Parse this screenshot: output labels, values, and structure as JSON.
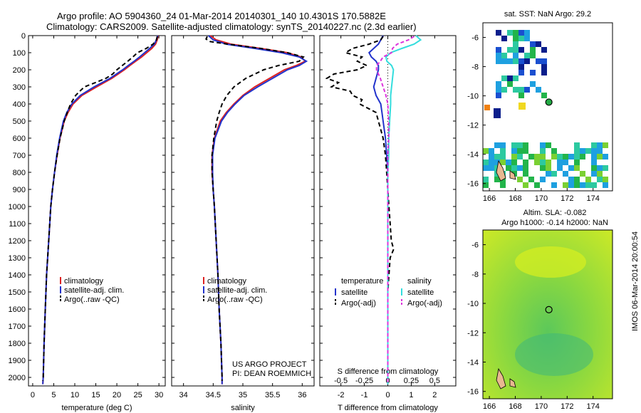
{
  "header": {
    "line1": "Argo profile: AO 5904360_24 01-Mar-2014 20140301_140 10.4301S 170.5882E",
    "line2": "Climatology: CARS2009. Satellite-adjusted climatology: synTS_20140227.nc (2.3d earlier)"
  },
  "colors": {
    "clim": "#dd2222",
    "sat": "#2233cc",
    "argo": "#000000",
    "sal_sat": "#33dddd",
    "sal_argo": "#dd33dd"
  },
  "depth_axis": {
    "ticks": [
      0,
      100,
      200,
      300,
      400,
      500,
      600,
      700,
      800,
      900,
      1000,
      1100,
      1200,
      1300,
      1400,
      1500,
      1600,
      1700,
      1800,
      1900,
      2000
    ],
    "lim": [
      0,
      2050
    ]
  },
  "chart_data": [
    {
      "type": "line",
      "xlabel": "temperature (deg C)",
      "xticks": [
        0,
        5,
        10,
        15,
        20,
        25,
        30
      ],
      "xlim": [
        -1,
        31.5
      ],
      "legend": {
        "position": "lower-center",
        "entries": [
          "climatology",
          "satellite-adj. clim.",
          "Argo(..raw -QC)"
        ]
      },
      "series": [
        {
          "name": "climatology",
          "color": "#dd2222",
          "dash": "",
          "depth": [
            0,
            25,
            50,
            75,
            100,
            125,
            150,
            175,
            200,
            250,
            300,
            350,
            400,
            450,
            500,
            600,
            700,
            800,
            900,
            1000,
            1200,
            1400,
            1600,
            1800,
            2000,
            2040
          ],
          "values": [
            29.8,
            29.6,
            29.2,
            28.3,
            27.1,
            25.9,
            24.5,
            23.1,
            21.8,
            18.8,
            15.2,
            11.7,
            9.6,
            8.4,
            7.5,
            6.5,
            5.8,
            5.2,
            4.7,
            4.3,
            3.8,
            3.3,
            3.0,
            2.7,
            2.5,
            2.4
          ]
        },
        {
          "name": "satellite-adj. clim.",
          "color": "#2233cc",
          "dash": "",
          "depth": [
            0,
            25,
            50,
            75,
            100,
            125,
            150,
            175,
            200,
            250,
            300,
            350,
            400,
            450,
            500,
            600,
            700,
            800,
            900,
            1000,
            1200,
            1400,
            1600,
            1800,
            2000,
            2040
          ],
          "values": [
            29.7,
            29.4,
            28.9,
            27.8,
            26.6,
            25.4,
            24.1,
            22.7,
            21.4,
            18.4,
            14.6,
            11.3,
            9.3,
            8.1,
            7.3,
            6.4,
            5.7,
            5.2,
            4.7,
            4.3,
            3.8,
            3.3,
            3.0,
            2.7,
            2.5,
            2.4
          ]
        },
        {
          "name": "Argo(..raw -QC)",
          "color": "#000000",
          "dash": "6,4",
          "depth": [
            5,
            25,
            50,
            75,
            100,
            125,
            150,
            175,
            200,
            225,
            250,
            275,
            300,
            325,
            350,
            400,
            450,
            500,
            600,
            700,
            800,
            900,
            1000,
            1200,
            1400,
            1600,
            1800,
            2000,
            2020
          ],
          "values": [
            29.6,
            29.4,
            28.6,
            27.0,
            24.9,
            23.8,
            22.6,
            21.3,
            20.0,
            19.0,
            17.4,
            14.9,
            12.3,
            11.2,
            10.2,
            9.0,
            8.2,
            7.5,
            6.5,
            5.8,
            5.2,
            4.7,
            4.3,
            3.8,
            3.3,
            3.0,
            2.7,
            2.5,
            2.4
          ]
        }
      ]
    },
    {
      "type": "line",
      "xlabel": "salinity",
      "xticks": [
        34,
        34.5,
        35,
        35.5,
        36
      ],
      "xlim": [
        33.8,
        36.2
      ],
      "legend": {
        "position": "lower-center",
        "entries": [
          "climatology",
          "satellite-adj. clim.",
          "Argo(..raw -QC)"
        ]
      },
      "annotation": [
        "US ARGO PROJECT",
        "PI: DEAN ROEMMICH"
      ],
      "series": [
        {
          "name": "climatology",
          "color": "#dd2222",
          "dash": "",
          "depth": [
            0,
            25,
            50,
            75,
            100,
            125,
            150,
            175,
            200,
            250,
            300,
            350,
            400,
            450,
            500,
            600,
            700,
            800,
            900,
            1000,
            1200,
            1400,
            1600,
            1800,
            2000,
            2040
          ],
          "values": [
            34.45,
            34.55,
            34.8,
            35.3,
            35.75,
            35.98,
            36.05,
            35.9,
            35.7,
            35.45,
            35.2,
            35.0,
            34.85,
            34.72,
            34.62,
            34.52,
            34.48,
            34.48,
            34.5,
            34.52,
            34.55,
            34.58,
            34.6,
            34.63,
            34.65,
            34.65
          ]
        },
        {
          "name": "satellite-adj. clim.",
          "color": "#2233cc",
          "dash": "",
          "depth": [
            0,
            25,
            50,
            75,
            100,
            125,
            150,
            175,
            200,
            250,
            300,
            350,
            400,
            450,
            500,
            600,
            700,
            800,
            900,
            1000,
            1200,
            1400,
            1600,
            1800,
            2000,
            2040
          ],
          "values": [
            34.42,
            34.5,
            34.72,
            35.2,
            35.65,
            35.95,
            36.07,
            35.95,
            35.75,
            35.5,
            35.25,
            35.02,
            34.87,
            34.74,
            34.64,
            34.53,
            34.49,
            34.49,
            34.5,
            34.52,
            34.55,
            34.58,
            34.6,
            34.63,
            34.65,
            34.65
          ]
        },
        {
          "name": "Argo(..raw -QC)",
          "color": "#000000",
          "dash": "6,4",
          "depth": [
            5,
            20,
            35,
            50,
            75,
            100,
            125,
            150,
            175,
            200,
            250,
            300,
            350,
            400,
            450,
            500,
            600,
            700,
            800,
            900,
            1000,
            1200,
            1400,
            1600,
            1800,
            2000,
            2020
          ],
          "values": [
            34.4,
            34.38,
            34.45,
            34.75,
            35.3,
            35.75,
            36.02,
            35.95,
            35.6,
            35.35,
            35.05,
            34.85,
            34.73,
            34.65,
            34.6,
            34.56,
            34.51,
            34.48,
            34.48,
            34.5,
            34.52,
            34.55,
            34.58,
            34.6,
            34.63,
            34.65,
            34.65
          ]
        }
      ]
    },
    {
      "type": "line",
      "xlabel": "T difference from climatology",
      "xlabel2": "S difference from climatology",
      "xticks": [
        -2,
        -1,
        0,
        1,
        2
      ],
      "xticks_s": [
        -0.5,
        -0.25,
        0,
        0.25,
        0.5
      ],
      "xlim": [
        -2.9,
        2.9
      ],
      "zero_line": "dotted",
      "legend": {
        "position": "lower",
        "groups": [
          {
            "title": "temperature",
            "entries": [
              "satellite",
              "Argo(-adj)"
            ]
          },
          {
            "title": "salinity",
            "entries": [
              "satellite",
              "Argo(-adj)"
            ]
          }
        ]
      },
      "series": [
        {
          "name": "temperature satellite",
          "color": "#2233cc",
          "dash": "",
          "depth": [
            0,
            25,
            50,
            75,
            100,
            125,
            150,
            175,
            200,
            250,
            300,
            350,
            400,
            450,
            500,
            600,
            700,
            800,
            1000,
            1500,
            2000,
            2040
          ],
          "values": [
            -0.2,
            -0.3,
            -0.4,
            -0.6,
            -0.8,
            -0.7,
            -0.5,
            -0.4,
            -0.4,
            -0.5,
            -0.6,
            -0.5,
            -0.3,
            -0.25,
            -0.2,
            -0.1,
            -0.05,
            0,
            0,
            0,
            0,
            0
          ]
        },
        {
          "name": "temperature Argo(-adj)",
          "color": "#000000",
          "dash": "6,4",
          "depth": [
            5,
            25,
            50,
            75,
            100,
            125,
            150,
            175,
            200,
            225,
            250,
            275,
            300,
            325,
            350,
            375,
            400,
            450,
            500,
            550,
            600,
            700,
            800,
            900,
            1000,
            1100,
            1200,
            1250,
            1300,
            1400,
            1500,
            1600,
            1700,
            1800,
            1900,
            2000,
            2020
          ],
          "values": [
            -0.2,
            -0.3,
            -0.8,
            -1.5,
            -1.8,
            -1.1,
            -1.3,
            -0.9,
            -1.3,
            -2.3,
            -2.6,
            -2.1,
            -2.4,
            -1.6,
            -1.5,
            -1.1,
            -1.2,
            -0.5,
            -0.4,
            -0.3,
            -0.2,
            -0.1,
            -0.05,
            0,
            0.05,
            0.1,
            0.15,
            0.25,
            0.1,
            0.05,
            0,
            0,
            0,
            0,
            0,
            0,
            0
          ]
        },
        {
          "name": "salinity satellite",
          "color": "#33dddd",
          "dash": "",
          "scale": 4,
          "depth": [
            0,
            25,
            50,
            75,
            100,
            125,
            150,
            175,
            200,
            250,
            300,
            350,
            400,
            500,
            600,
            700,
            800,
            1000,
            1500,
            2000,
            2040
          ],
          "values": [
            0.3,
            0.35,
            0.28,
            0.15,
            0.03,
            -0.02,
            -0.01,
            0.04,
            0.06,
            0.05,
            0.04,
            0.03,
            0.03,
            0.02,
            0.01,
            0.01,
            0,
            0,
            0,
            0,
            0
          ]
        },
        {
          "name": "salinity Argo(-adj)",
          "color": "#dd33dd",
          "dash": "5,3",
          "scale": 4,
          "depth": [
            5,
            25,
            50,
            75,
            100,
            125,
            150,
            175,
            200,
            250,
            300,
            350,
            400,
            500,
            600,
            700,
            800,
            1000,
            1500,
            2000,
            2040
          ],
          "values": [
            0.28,
            0.22,
            0.1,
            0.05,
            0.04,
            -0.05,
            -0.08,
            -0.12,
            -0.12,
            -0.08,
            -0.05,
            -0.02,
            0,
            0.01,
            0.01,
            0,
            0,
            0,
            0,
            0,
            0
          ]
        }
      ]
    }
  ],
  "maps": [
    {
      "title": "sat. SST: NaN Argo: 29.2",
      "xticks": [
        166,
        168,
        170,
        172,
        174
      ],
      "yticks": [
        -6,
        -8,
        -10,
        -12,
        -14,
        -16
      ],
      "xlim": [
        165.5,
        175.5
      ],
      "ylim": [
        -16.5,
        -5
      ],
      "argo_point": {
        "lon": 170.59,
        "lat": -10.43
      }
    },
    {
      "title1": "Altim. SLA: -0.082",
      "title2": "Argo h1000: -0.14  h2000: NaN",
      "xticks": [
        166,
        168,
        170,
        172,
        174
      ],
      "yticks": [
        -6,
        -8,
        -10,
        -12,
        -14,
        -16
      ],
      "xlim": [
        165.5,
        175.5
      ],
      "ylim": [
        -16.5,
        -5
      ],
      "argo_point": {
        "lon": 170.59,
        "lat": -10.43
      }
    }
  ],
  "footer": {
    "side_text": "IMOS 06-Mar-2014 20:00:54"
  }
}
